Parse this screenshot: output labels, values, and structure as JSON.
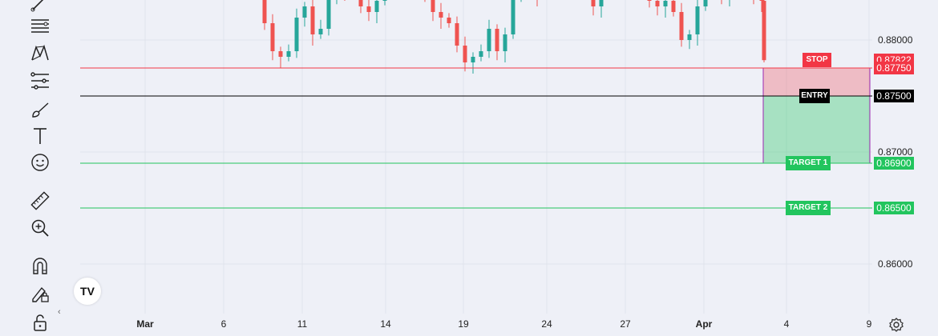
{
  "toolbar": {
    "items": [
      {
        "name": "trendline-tool-icon"
      },
      {
        "name": "fib-retracement-icon"
      },
      {
        "name": "pattern-tool-icon"
      },
      {
        "name": "prediction-tool-icon"
      },
      {
        "name": "brush-tool-icon"
      },
      {
        "name": "text-tool-icon"
      },
      {
        "name": "emoji-icon"
      },
      {
        "name": "ruler-icon"
      },
      {
        "name": "zoom-in-icon"
      },
      {
        "name": "magnet-icon"
      },
      {
        "name": "lock-drawing-icon"
      },
      {
        "name": "lock-icon"
      }
    ],
    "logo_text": "TV"
  },
  "colors": {
    "up": "#26a69a",
    "down": "#ef5350",
    "stop": "#f23645",
    "target": "#22c55e",
    "entry": "#000000",
    "stop_zone": "rgba(242,54,69,0.28)",
    "target_zone": "rgba(34,197,94,0.35)",
    "background": "#eef0f7"
  },
  "chart_data": {
    "type": "candlestick",
    "x_labels": [
      "Mar",
      "6",
      "11",
      "14",
      "19",
      "24",
      "27",
      "Apr",
      "4",
      "9"
    ],
    "y_ticks": [
      "0.88000",
      "0.87000",
      "0.86000"
    ],
    "ylim": [
      0.8565,
      0.8852
    ],
    "levels": [
      {
        "name": "stop",
        "label": "STOP",
        "value": 0.8775,
        "price_text": "0.87750",
        "color": "#f23645"
      },
      {
        "name": "entry",
        "label": "ENTRY",
        "value": 0.875,
        "price_text": "0.87500",
        "color": "#000000"
      },
      {
        "name": "target-1",
        "label": "TARGET 1",
        "value": 0.869,
        "price_text": "0.86900",
        "color": "#22c55e"
      },
      {
        "name": "target-2",
        "label": "TARGET 2",
        "value": 0.865,
        "price_text": "0.86500",
        "color": "#22c55e"
      }
    ],
    "current_price": {
      "value": 0.87822,
      "text": "0.87822"
    }
  }
}
